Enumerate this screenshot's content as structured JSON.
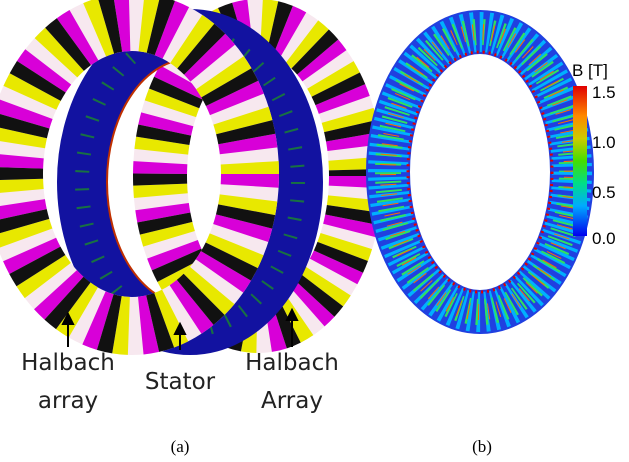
{
  "panel_a": {
    "labels": {
      "left": [
        "Halbach",
        "array"
      ],
      "middle": "Stator",
      "right": [
        "Halbach",
        "Array"
      ]
    },
    "caption": "(a)"
  },
  "panel_b": {
    "colorbar": {
      "title": "B [T]",
      "ticks": [
        "1.5",
        "1.0",
        "0.5",
        "0.0"
      ]
    },
    "caption": "(b)"
  }
}
